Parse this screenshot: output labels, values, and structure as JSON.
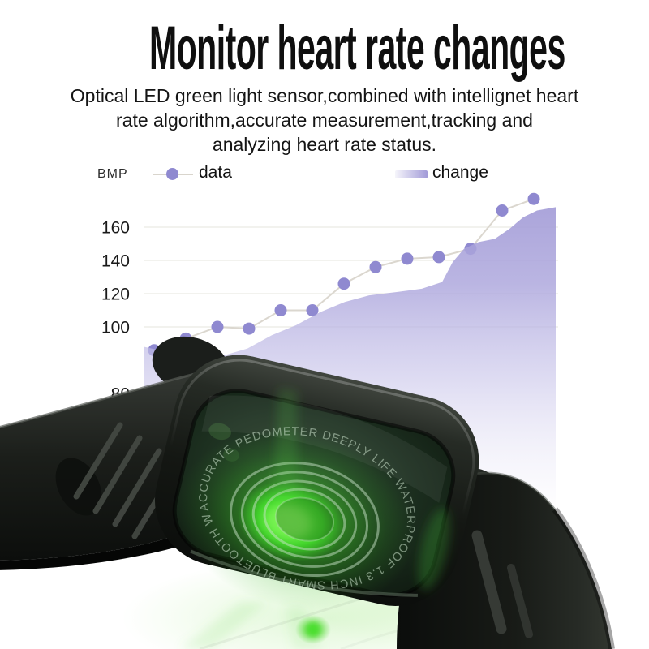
{
  "header": {
    "title": "Monitor heart rate changes",
    "subtitle_lines": [
      "Optical LED green light sensor,combined with intellignet heart",
      "rate algorithm,accurate measurement,tracking and",
      "analyzing heart rate status."
    ]
  },
  "chart_data": {
    "type": "line+area",
    "title": "",
    "unit_label": "BMP",
    "legend": [
      {
        "label": "data",
        "marker": "dot-on-line"
      },
      {
        "label": "change",
        "marker": "gradient-bar"
      }
    ],
    "y_ticks": [
      160,
      140,
      120,
      100,
      80
    ],
    "ylim": [
      75,
      185
    ],
    "grid": "faint-horizontal",
    "legend_position": "top",
    "series": [
      {
        "name": "data",
        "type": "line-scatter",
        "color": "#8f89d0",
        "values": [
          86,
          93,
          100,
          99,
          110,
          110,
          126,
          136,
          141,
          142,
          147,
          170,
          177
        ]
      },
      {
        "name": "change",
        "type": "area",
        "color": "#a9a2d9",
        "points": [
          [
            178,
            88
          ],
          [
            205,
            85
          ],
          [
            240,
            83
          ],
          [
            270,
            82
          ],
          [
            305,
            87
          ],
          [
            335,
            95
          ],
          [
            365,
            101
          ],
          [
            395,
            109
          ],
          [
            425,
            115
          ],
          [
            455,
            119
          ],
          [
            490,
            121
          ],
          [
            520,
            123
          ],
          [
            545,
            127
          ],
          [
            558,
            139
          ],
          [
            572,
            147
          ],
          [
            590,
            151
          ],
          [
            610,
            153
          ],
          [
            628,
            159
          ],
          [
            645,
            166
          ],
          [
            662,
            170
          ],
          [
            685,
            172
          ]
        ]
      }
    ]
  },
  "watch": {
    "engraving": "ACCURATE PEDOMETER DEEPLY LIFE WATERPROOF 1.3 INCH SMART BLUETOOTH WATCH",
    "led_color": "#46e22e"
  },
  "colors": {
    "accent_purple": "#8f89d0",
    "area_purple": "#a9a2d9",
    "text_dark": "#111111",
    "grid_line": "#eceae5"
  }
}
